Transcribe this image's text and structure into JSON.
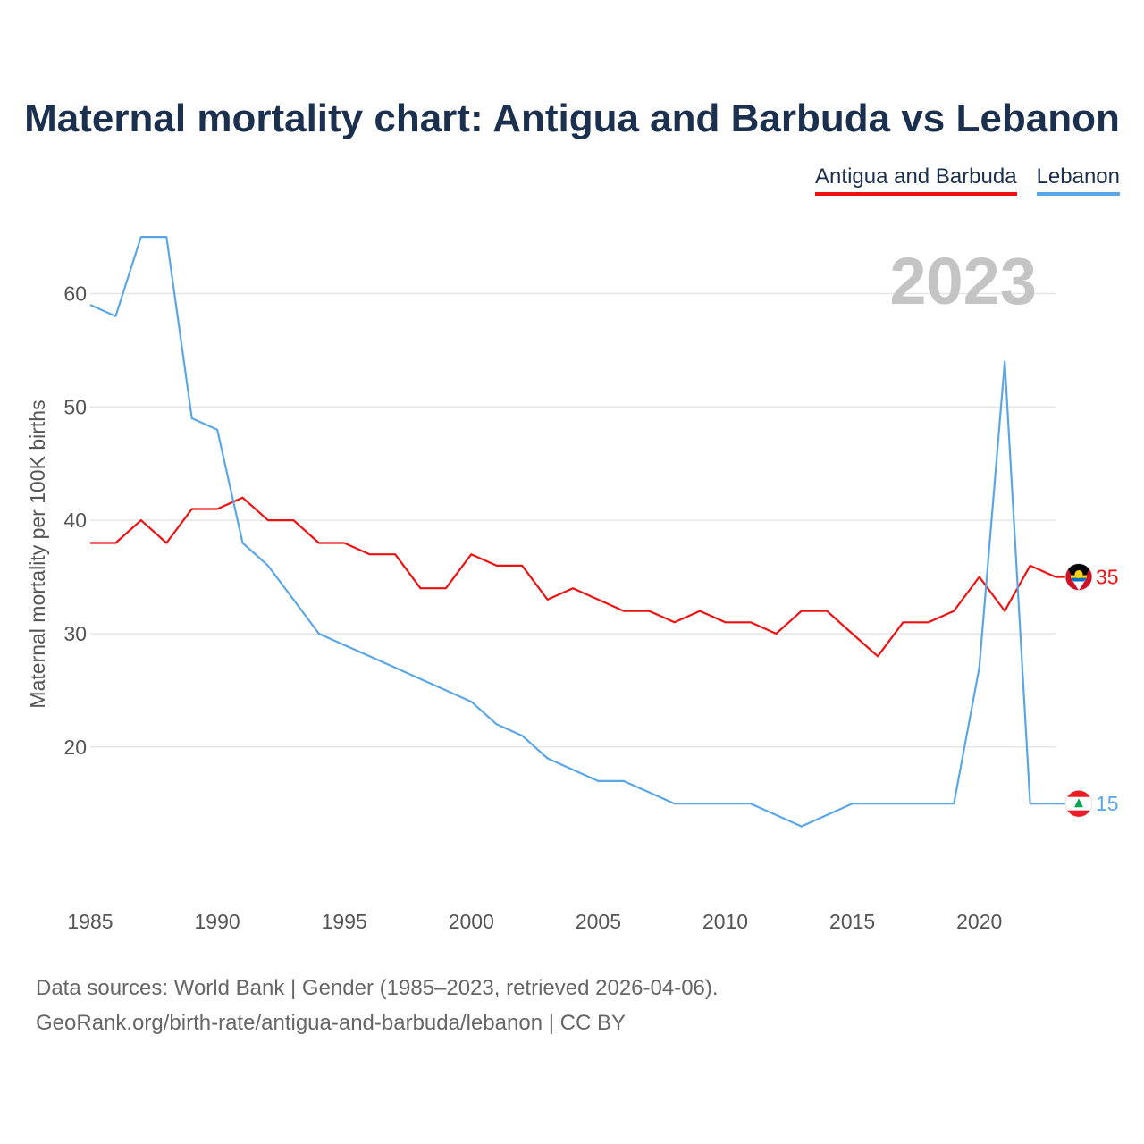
{
  "title": "Maternal mortality chart: Antigua and Barbuda vs Lebanon",
  "legend": [
    {
      "label": "Antigua and Barbuda",
      "color": "#ee1111"
    },
    {
      "label": "Lebanon",
      "color": "#5ba7e6"
    }
  ],
  "year_label": "2023",
  "footer": {
    "line1": "Data sources: World Bank | Gender (1985–2023, retrieved 2026-04-06).",
    "line2": "GeoRank.org/birth-rate/antigua-and-barbuda/lebanon | CC BY"
  },
  "chart_data": {
    "type": "line",
    "title": "Maternal mortality chart: Antigua and Barbuda vs Lebanon",
    "xlabel": "",
    "ylabel": "Maternal mortality per 100K births",
    "x": [
      1985,
      1986,
      1987,
      1988,
      1989,
      1990,
      1991,
      1992,
      1993,
      1994,
      1995,
      1996,
      1997,
      1998,
      1999,
      2000,
      2001,
      2002,
      2003,
      2004,
      2005,
      2006,
      2007,
      2008,
      2009,
      2010,
      2011,
      2012,
      2013,
      2014,
      2015,
      2016,
      2017,
      2018,
      2019,
      2020,
      2021,
      2022,
      2023
    ],
    "xlim": [
      1985,
      2023
    ],
    "ylim": [
      8,
      68
    ],
    "xticks": [
      1985,
      1990,
      1995,
      2000,
      2005,
      2010,
      2015,
      2020
    ],
    "yticks": [
      20,
      30,
      40,
      50,
      60
    ],
    "grid": true,
    "series": [
      {
        "name": "Antigua and Barbuda",
        "color": "#ee1111",
        "end_label": "35",
        "flag": "antigua",
        "values": [
          38,
          38,
          40,
          38,
          41,
          41,
          42,
          40,
          40,
          38,
          38,
          37,
          37,
          34,
          34,
          37,
          36,
          36,
          33,
          34,
          33,
          32,
          32,
          31,
          32,
          31,
          31,
          30,
          32,
          32,
          30,
          28,
          31,
          31,
          32,
          35,
          32,
          36,
          35
        ]
      },
      {
        "name": "Lebanon",
        "color": "#5ba7e6",
        "end_label": "15",
        "flag": "lebanon",
        "values": [
          59,
          58,
          65,
          65,
          49,
          48,
          38,
          36,
          33,
          30,
          29,
          28,
          27,
          26,
          25,
          24,
          22,
          21,
          19,
          18,
          17,
          17,
          16,
          15,
          15,
          15,
          15,
          14,
          13,
          14,
          15,
          15,
          15,
          15,
          15,
          27,
          54,
          15,
          15
        ]
      }
    ]
  }
}
